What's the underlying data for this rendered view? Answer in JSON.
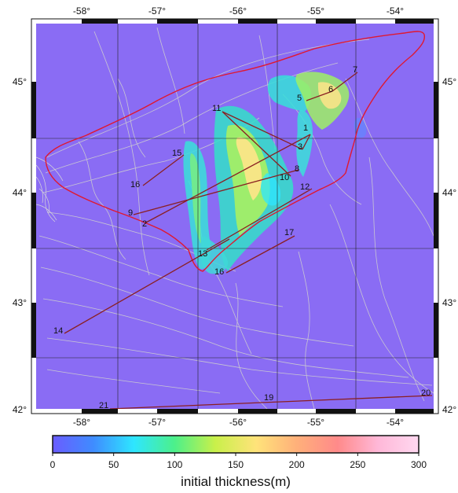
{
  "map": {
    "lon_ticks": [
      "-58°",
      "-57°",
      "-56°",
      "-55°",
      "-54°"
    ],
    "lat_ticks": [
      "45°",
      "44°",
      "43°",
      "42°"
    ],
    "stations": [
      {
        "id": "1"
      },
      {
        "id": "2"
      },
      {
        "id": "3"
      },
      {
        "id": "5"
      },
      {
        "id": "6"
      },
      {
        "id": "7"
      },
      {
        "id": "8"
      },
      {
        "id": "9"
      },
      {
        "id": "10"
      },
      {
        "id": "11"
      },
      {
        "id": "12"
      },
      {
        "id": "13"
      },
      {
        "id": "14"
      },
      {
        "id": "15"
      },
      {
        "id": "16"
      },
      {
        "id": "16b",
        "label": "16"
      },
      {
        "id": "17"
      },
      {
        "id": "19"
      },
      {
        "id": "20"
      },
      {
        "id": "21"
      }
    ],
    "colors": {
      "background": "#8a6cf4",
      "boundary": "#e01830",
      "transect": "#8a1f22",
      "contour": "#c8c8c8"
    }
  },
  "colorbar": {
    "title": "initial thickness(m)",
    "ticks": [
      "0",
      "50",
      "100",
      "150",
      "200",
      "250",
      "300"
    ],
    "range": [
      0,
      300
    ],
    "stops": [
      "#6a5cff",
      "#3f8cff",
      "#2ee6ff",
      "#4cf08a",
      "#c9f04a",
      "#ffe37a",
      "#ffb07a",
      "#ff8a8a",
      "#ffb8d8",
      "#ffd8f0"
    ]
  }
}
